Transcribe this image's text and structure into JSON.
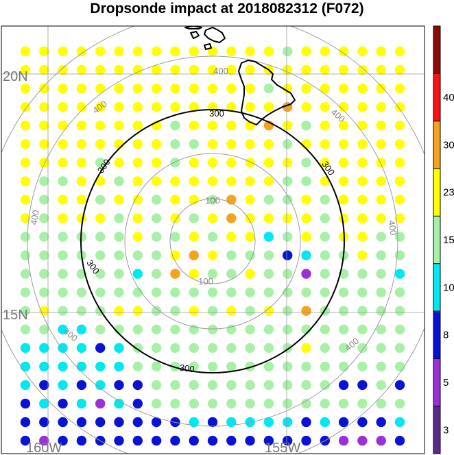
{
  "title": "Dropsonde impact at 2018082312 (F072)",
  "axis_labels": {
    "lat_20n": "20N",
    "lat_15n": "15N",
    "lon_160w": "160W",
    "lon_155w": "155W"
  },
  "range_ring_labels": [
    "100",
    "100",
    "300",
    "300",
    "300",
    "300",
    "300",
    "400",
    "400",
    "400",
    "400",
    "400",
    "400",
    "400"
  ],
  "colorbar": {
    "ticks": [
      "3",
      "5",
      "8",
      "10",
      "15",
      "23",
      "30",
      "40"
    ],
    "colors": [
      "#5a2a8a",
      "#9b30d8",
      "#0a12d6",
      "#00e8f0",
      "#a8f0a8",
      "#ffff00",
      "#f5a21c",
      "#ff1010",
      "#8b0a0a"
    ]
  },
  "palette": {
    "Y": "#ffff00",
    "G": "#a8f0a8",
    "C": "#00e8f0",
    "B": "#0a12d6",
    "P": "#9b30d8",
    "O": "#f5a21c"
  },
  "chart_data": {
    "type": "heatmap",
    "title": "Dropsonde impact at 2018082312 (F072)",
    "colorbar_levels": [
      3,
      5,
      8,
      10,
      15,
      23,
      30,
      40
    ],
    "category_key": {
      "P": "3-5",
      "B": "5-8",
      "C": "8-10",
      "G": "10-15",
      "Y": "15-23",
      "O": "23-30"
    },
    "rows": [
      "YYYYYYYYYYYYYYGYYYYYY",
      "YYYYYYYYYYYYYYYYYYYYY",
      "YYYYYYYYYYYYYGYYYYYYY",
      "YYYYYYYYYYYYYYOYYYYYY",
      "YYYYYYYYGYYYYOYGYYYYY",
      "YYYYYYYYGGYYYYGYYYYYY",
      "YYYYGYYYGYYYYYYGYYYYY",
      "YGGYYGYYYYYYYYGGYYYYY",
      "YGYYGYYGYYGOYGGYGYYYY",
      "YGYYYGYGYGYOYYYYGYYYY",
      "GGGGGGYGGYGYYCGYGYYGG",
      "GGGGGGGGYOYGGGBCGGYGG",
      "GGGGGGCGOYGGYGGPGGGGC",
      "GGGGGGGGGGGGGGGGGGGGG",
      "GYGGGYYGGYGYGYGOGGGGG",
      "GGCCGGGGGGGGGGGGGGGGG",
      "CCCCBCGGGGGGGGGYGGGGG",
      "CCCCCCGGGGGGGGGGGGGGG",
      "CBCBCBBGGGGGGGGGGBBGB",
      "BCBCPCBGGGGGGGGGGGGGG",
      "BBBBBBBBBCBCCCCBCBBBC",
      "BPBBBBBBBBBBBBBBBPPPB"
    ]
  }
}
